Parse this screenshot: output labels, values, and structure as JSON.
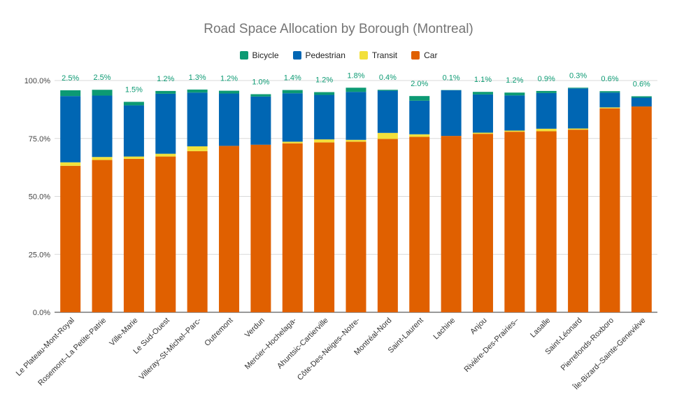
{
  "chart_data": {
    "type": "bar",
    "stacked": true,
    "title": "Road Space Allocation by Borough (Montreal)",
    "categories": [
      "Le Plateau-Mont-Royal",
      "Rosemont–La Petite-Patrie",
      "Ville-Marie",
      "Le Sud-Ouest",
      "Villeray–St-Michel–Parc-",
      "Outremont",
      "Verdun",
      "Mercier–Hochelaga-",
      "Ahuntsic-Cartierville",
      "Côte-Des-Neiges–Notre-",
      "Montréal-Nord",
      "Saint-Laurent",
      "Lachine",
      "Anjou",
      "Rivière-Des-Prairies–",
      "Lasalle",
      "Saint-Léonard",
      "Pierrefonds-Roxboro",
      "Île-Bizard–Sainte-Geneviève"
    ],
    "series": [
      {
        "name": "Car",
        "color": "#e06000",
        "values": [
          63.2,
          65.7,
          66.2,
          67.2,
          69.5,
          71.8,
          72.3,
          72.9,
          73.3,
          73.6,
          74.8,
          75.7,
          76.1,
          77.0,
          77.9,
          78.1,
          78.8,
          88.0,
          88.8
        ]
      },
      {
        "name": "Transit",
        "color": "#f2e03b",
        "values": [
          1.5,
          1.3,
          1.0,
          1.2,
          2.1,
          0.0,
          0.0,
          0.7,
          1.3,
          0.8,
          2.6,
          1.1,
          0.0,
          0.5,
          0.5,
          1.1,
          0.5,
          0.4,
          0.0
        ]
      },
      {
        "name": "Pedestrian",
        "color": "#0066b3",
        "values": [
          28.6,
          26.5,
          22.1,
          25.9,
          23.2,
          22.6,
          20.8,
          20.9,
          19.2,
          20.7,
          18.2,
          14.5,
          19.7,
          16.5,
          15.2,
          15.4,
          17.3,
          6.4,
          3.8
        ]
      },
      {
        "name": "Bicycle",
        "color": "#0c9a73",
        "values": [
          2.5,
          2.5,
          1.5,
          1.2,
          1.3,
          1.2,
          1.0,
          1.4,
          1.2,
          1.8,
          0.4,
          2.0,
          0.1,
          1.1,
          1.2,
          0.9,
          0.3,
          0.6,
          0.6
        ]
      }
    ],
    "legend_order": [
      "Bicycle",
      "Pedestrian",
      "Transit",
      "Car"
    ],
    "legend_position": "top",
    "data_labels": [
      "2.5%",
      "2.5%",
      "1.5%",
      "1.2%",
      "1.3%",
      "1.2%",
      "1.0%",
      "1.4%",
      "1.2%",
      "1.8%",
      "0.4%",
      "2.0%",
      "0.1%",
      "1.1%",
      "1.2%",
      "0.9%",
      "0.3%",
      "0.6%",
      "0.6%"
    ],
    "data_label_color": "#0c9a73",
    "yticks": [
      "0.0%",
      "25.0%",
      "50.0%",
      "75.0%",
      "100.0%"
    ],
    "ylim": [
      0,
      100
    ],
    "grid": true
  }
}
